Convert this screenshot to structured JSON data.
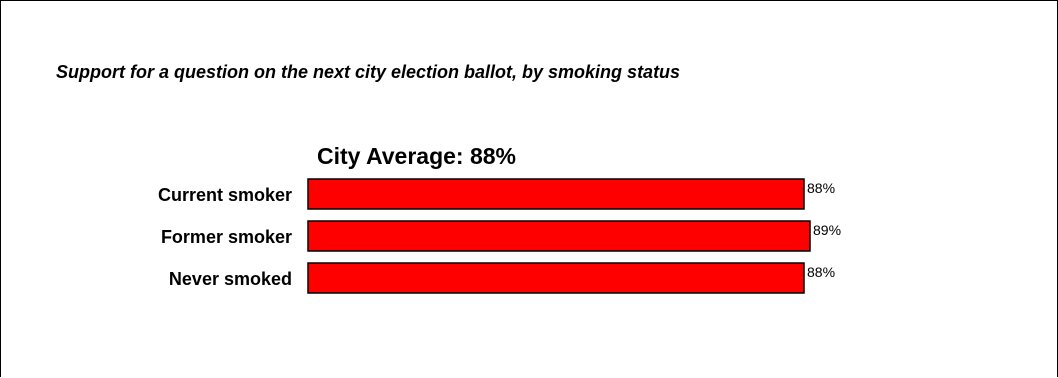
{
  "subtitle": "Support for a question on the next city election ballot, by smoking status",
  "chart_data": {
    "type": "bar",
    "orientation": "horizontal",
    "title": "City Average: 88%",
    "categories": [
      "Current smoker",
      "Former smoker",
      "Never smoked"
    ],
    "values": [
      88,
      89,
      88
    ],
    "value_labels": [
      "88%",
      "89%",
      "88%"
    ],
    "xlim": [
      0,
      89
    ],
    "bar_color": "#ff0000",
    "bar_border_color": "#000000",
    "grid": false,
    "legend": false
  }
}
